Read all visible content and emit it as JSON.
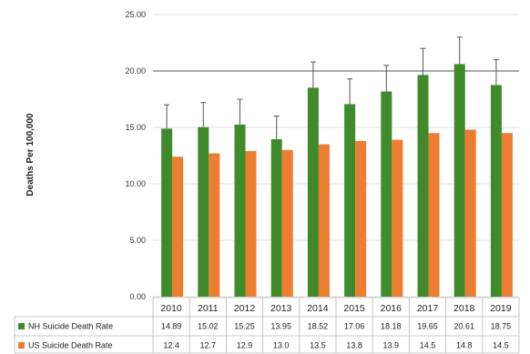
{
  "chart_data": {
    "type": "bar",
    "ylabel": "Deaths Per 100,000",
    "ylim": [
      0,
      25
    ],
    "yticks": [
      "0.00",
      "5.00",
      "10.00",
      "15.00",
      "20.00",
      "25.00"
    ],
    "ytick_values": [
      0,
      5,
      10,
      15,
      20,
      25
    ],
    "categories": [
      "2010",
      "2011",
      "2012",
      "2013",
      "2014",
      "2015",
      "2016",
      "2017",
      "2018",
      "2019"
    ],
    "series": [
      {
        "name": "NH Suicide Death Rate",
        "color": "#3f8a2b",
        "values": [
          14.89,
          15.02,
          15.25,
          13.95,
          18.52,
          17.06,
          18.18,
          19.65,
          20.61,
          18.75
        ],
        "labels": [
          "14.89",
          "15.02",
          "15.25",
          "13.95",
          "18.52",
          "17.06",
          "18.18",
          "19.65",
          "20.61",
          "18.75"
        ],
        "error_upper": [
          17.0,
          17.2,
          17.5,
          16.0,
          20.8,
          19.3,
          20.5,
          22.0,
          23.0,
          21.0
        ]
      },
      {
        "name": "US Suicide Death Rate",
        "color": "#ed7d31",
        "values": [
          12.4,
          12.7,
          12.9,
          13.0,
          13.5,
          13.8,
          13.9,
          14.5,
          14.8,
          14.5
        ],
        "labels": [
          "12.4",
          "12.7",
          "12.9",
          "13.0",
          "13.5",
          "13.8",
          "13.9",
          "14.5",
          "14.8",
          "14.5"
        ]
      }
    ],
    "grid": "horizontal",
    "legend": "data-table"
  }
}
